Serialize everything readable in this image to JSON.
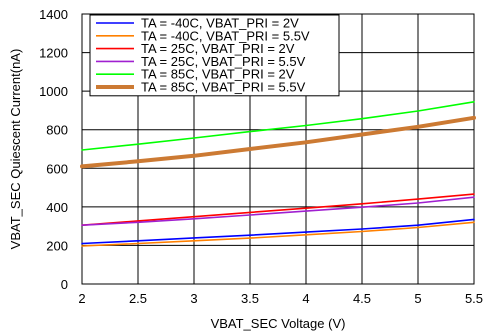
{
  "chart_data": {
    "type": "line",
    "title": "",
    "xlabel": "VBAT_SEC Voltage (V)",
    "ylabel": "VBAT_SEC Quiescent Current(nA)",
    "xlim": [
      2,
      5.5
    ],
    "ylim": [
      0,
      1400
    ],
    "x_ticks": [
      "2",
      "2.5",
      "3",
      "3.5",
      "4",
      "4.5",
      "5",
      "5.5"
    ],
    "y_ticks": [
      "0",
      "200",
      "400",
      "600",
      "800",
      "1000",
      "1200",
      "1400"
    ],
    "grid": true,
    "legend_position": "top-left",
    "x": [
      2,
      2.5,
      3,
      3.5,
      4,
      4.5,
      5,
      5.5
    ],
    "series": [
      {
        "name": "TA = -40C, VBAT_PRI = 2V",
        "color": "#0000ff",
        "emphasis": "normal",
        "values": [
          210,
          224,
          239,
          253,
          269,
          285,
          305,
          335
        ]
      },
      {
        "name": "TA = -40C, VBAT_PRI = 5.5V",
        "color": "#ff8000",
        "emphasis": "normal",
        "values": [
          197,
          210,
          224,
          238,
          255,
          272,
          293,
          320
        ]
      },
      {
        "name": "TA = 25C, VBAT_PRI = 2V",
        "color": "#ff0000",
        "emphasis": "normal",
        "values": [
          305,
          327,
          349,
          371,
          393,
          416,
          440,
          466
        ]
      },
      {
        "name": "TA = 25C, VBAT_PRI = 5.5V",
        "color": "#a020d0",
        "emphasis": "normal",
        "values": [
          305,
          320,
          338,
          358,
          378,
          398,
          420,
          450
        ]
      },
      {
        "name": "TA = 85C, VBAT_PRI = 2V",
        "color": "#00ff00",
        "emphasis": "normal",
        "values": [
          695,
          725,
          757,
          790,
          822,
          857,
          897,
          945
        ]
      },
      {
        "name": "TA = 85C, VBAT_PRI = 5.5V",
        "color": "#cc7a33",
        "emphasis": "bold",
        "values": [
          610,
          636,
          665,
          700,
          735,
          775,
          815,
          862
        ]
      }
    ]
  }
}
